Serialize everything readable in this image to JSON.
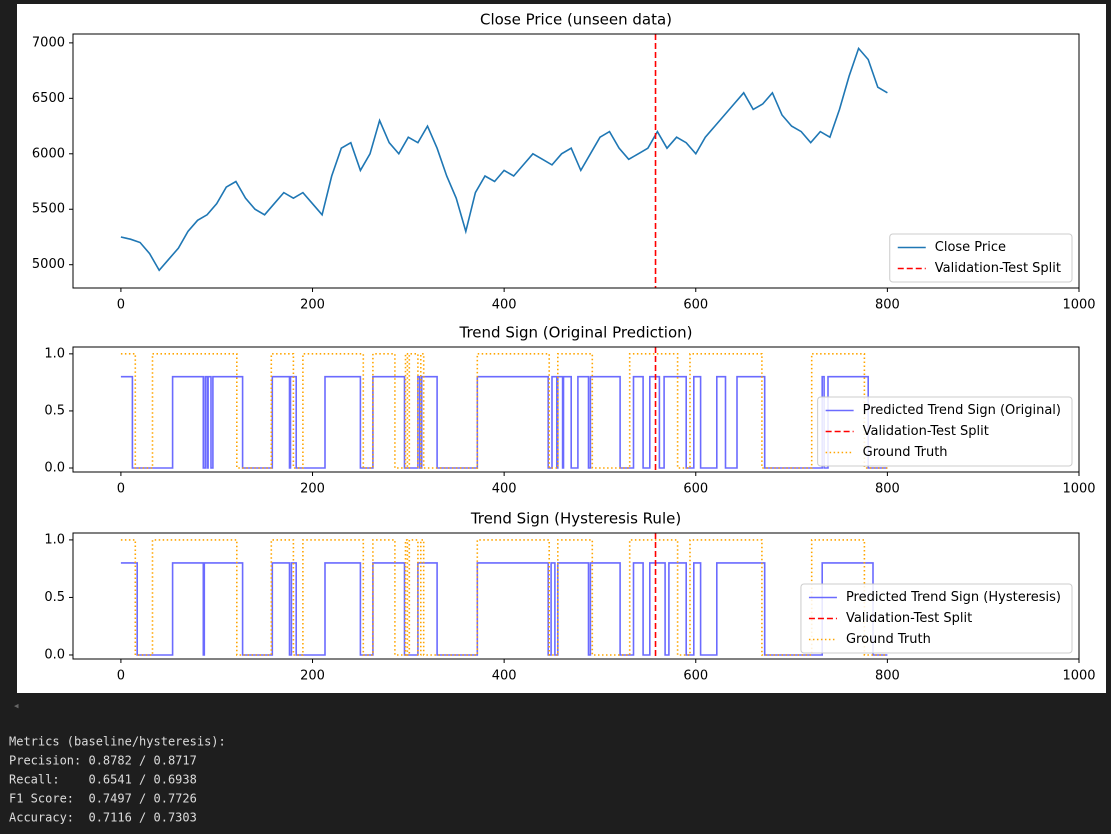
{
  "chart_data": [
    {
      "type": "line",
      "title": "Close Price (unseen data)",
      "xlim": [
        -50,
        1000
      ],
      "xticks": [
        0,
        200,
        400,
        600,
        800,
        1000
      ],
      "ylim": [
        4790,
        7080
      ],
      "yticks": [
        5000,
        5500,
        6000,
        6500,
        7000
      ],
      "legend": "lower right",
      "series": [
        {
          "name": "Close Price",
          "color": "#1f77b4",
          "linestyle": "solid",
          "x": [
            0,
            10,
            20,
            30,
            40,
            50,
            60,
            70,
            80,
            90,
            100,
            110,
            120,
            130,
            140,
            150,
            160,
            170,
            180,
            190,
            200,
            210,
            220,
            230,
            240,
            250,
            260,
            270,
            280,
            290,
            300,
            310,
            320,
            330,
            340,
            350,
            360,
            370,
            380,
            390,
            400,
            410,
            420,
            430,
            440,
            450,
            460,
            470,
            480,
            490,
            500,
            510,
            520,
            530,
            540,
            550,
            560,
            570,
            580,
            590,
            600,
            610,
            620,
            630,
            640,
            650,
            660,
            670,
            680,
            690,
            700,
            710,
            720,
            730,
            740,
            750,
            760,
            770,
            780,
            790,
            800
          ],
          "values": [
            5250,
            5230,
            5200,
            5100,
            4950,
            5050,
            5150,
            5300,
            5400,
            5450,
            5550,
            5700,
            5750,
            5600,
            5500,
            5450,
            5550,
            5650,
            5600,
            5650,
            5550,
            5450,
            5800,
            6050,
            6100,
            5850,
            6000,
            6300,
            6100,
            6000,
            6150,
            6100,
            6250,
            6050,
            5800,
            5600,
            5300,
            5650,
            5800,
            5750,
            5850,
            5800,
            5900,
            6000,
            5950,
            5900,
            6000,
            6050,
            5850,
            6000,
            6150,
            6200,
            6050,
            5950,
            6000,
            6050,
            6200,
            6050,
            6150,
            6100,
            6000,
            6150,
            6250,
            6350,
            6450,
            6550,
            6400,
            6450,
            6550,
            6350,
            6250,
            6200,
            6100,
            6200,
            6150,
            6400,
            6700,
            6950,
            6850,
            6600,
            6550
          ]
        },
        {
          "name": "Validation-Test Split",
          "type": "vline",
          "color": "red",
          "linestyle": "dashed",
          "x": [
            558
          ]
        }
      ]
    },
    {
      "type": "line",
      "title": "Trend Sign (Original Prediction)",
      "xlim": [
        -50,
        1000
      ],
      "xticks": [
        0,
        200,
        400,
        600,
        800,
        1000
      ],
      "ylim": [
        -0.035,
        1.06
      ],
      "yticks": [
        {
          "value": 0,
          "label": "0.0"
        },
        {
          "value": 0.5,
          "label": "0.5"
        },
        {
          "value": 1,
          "label": "1.0"
        }
      ],
      "legend": "lower right",
      "series": [
        {
          "name": "Predicted Trend Sign (Original)",
          "color": "#6b6bff",
          "linestyle": "solid",
          "drawstyle": "steps-post",
          "x": [
            0,
            12,
            54,
            86,
            88,
            90,
            91,
            94,
            96,
            127,
            158,
            176,
            177,
            183,
            213,
            250,
            263,
            296,
            310,
            312,
            314,
            330,
            372,
            446,
            450,
            455,
            456,
            461,
            462,
            470,
            477,
            488,
            490,
            521,
            535,
            545,
            552,
            562,
            567,
            590,
            598,
            605,
            622,
            631,
            643,
            672,
            732,
            734,
            738,
            780,
            800
          ],
          "values": [
            0.8,
            0,
            0.8,
            0,
            0.8,
            0,
            0.8,
            0,
            0.8,
            0,
            0.8,
            0,
            0.8,
            0,
            0.8,
            0,
            0.8,
            0,
            0.8,
            0,
            0.8,
            0,
            0.8,
            0,
            0.8,
            0,
            0.8,
            0,
            0.8,
            0,
            0.8,
            0,
            0.8,
            0,
            0.8,
            0,
            0.8,
            0,
            0.8,
            0,
            0.8,
            0,
            0.8,
            0,
            0.8,
            0,
            0.8,
            0,
            0.8,
            0,
            0
          ]
        },
        {
          "name": "Validation-Test Split",
          "type": "vline",
          "color": "red",
          "linestyle": "dashed",
          "x": [
            558
          ]
        },
        {
          "name": "Ground Truth",
          "color": "orange",
          "linestyle": "dotted",
          "drawstyle": "steps-post",
          "x": [
            0,
            15,
            33,
            121,
            157,
            180,
            190,
            253,
            263,
            286,
            297,
            299,
            301,
            310,
            313,
            316,
            372,
            447,
            456,
            492,
            531,
            581,
            594,
            669,
            721,
            776,
            800
          ],
          "values": [
            1,
            0,
            1,
            0,
            1,
            0,
            1,
            0,
            1,
            0,
            1,
            0,
            1,
            0,
            1,
            0,
            1,
            0,
            1,
            0,
            1,
            0,
            1,
            0,
            1,
            0,
            0
          ]
        }
      ]
    },
    {
      "type": "line",
      "title": "Trend Sign (Hysteresis Rule)",
      "xlim": [
        -50,
        1000
      ],
      "xticks": [
        0,
        200,
        400,
        600,
        800,
        1000
      ],
      "ylim": [
        -0.035,
        1.06
      ],
      "yticks": [
        {
          "value": 0,
          "label": "0.0"
        },
        {
          "value": 0.5,
          "label": "0.5"
        },
        {
          "value": 1,
          "label": "1.0"
        }
      ],
      "legend": "lower right",
      "series": [
        {
          "name": "Predicted Trend Sign (Hysteresis)",
          "color": "#6b6bff",
          "linestyle": "solid",
          "drawstyle": "steps-post",
          "x": [
            0,
            17,
            54,
            86,
            87,
            127,
            158,
            176,
            178,
            183,
            213,
            250,
            263,
            296,
            310,
            330,
            372,
            446,
            449,
            453,
            456,
            488,
            490,
            521,
            535,
            545,
            552,
            568,
            572,
            590,
            598,
            605,
            622,
            672,
            732,
            785,
            800
          ],
          "values": [
            0.8,
            0,
            0.8,
            0,
            0.8,
            0,
            0.8,
            0,
            0.8,
            0,
            0.8,
            0,
            0.8,
            0,
            0.8,
            0,
            0.8,
            0,
            0.8,
            0,
            0.8,
            0,
            0.8,
            0,
            0.8,
            0,
            0.8,
            0,
            0.8,
            0,
            0.8,
            0,
            0.8,
            0,
            0.8,
            0,
            0
          ]
        },
        {
          "name": "Validation-Test Split",
          "type": "vline",
          "color": "red",
          "linestyle": "dashed",
          "x": [
            558
          ]
        },
        {
          "name": "Ground Truth",
          "color": "orange",
          "linestyle": "dotted",
          "drawstyle": "steps-post",
          "x": [
            0,
            15,
            33,
            121,
            157,
            180,
            190,
            253,
            263,
            286,
            297,
            299,
            301,
            310,
            313,
            316,
            372,
            447,
            456,
            492,
            531,
            581,
            594,
            669,
            721,
            776,
            800
          ],
          "values": [
            1,
            0,
            1,
            0,
            1,
            0,
            1,
            0,
            1,
            0,
            1,
            0,
            1,
            0,
            1,
            0,
            1,
            0,
            1,
            0,
            1,
            0,
            1,
            0,
            1,
            0,
            0
          ]
        }
      ]
    }
  ],
  "output": {
    "lines": [
      "Metrics (baseline/hysteresis):",
      "Precision: 0.8782 / 0.8717",
      "Recall:    0.6541 / 0.6938",
      "F1 Score:  0.7497 / 0.7726",
      "Accuracy:  0.7116 / 0.7303"
    ]
  }
}
